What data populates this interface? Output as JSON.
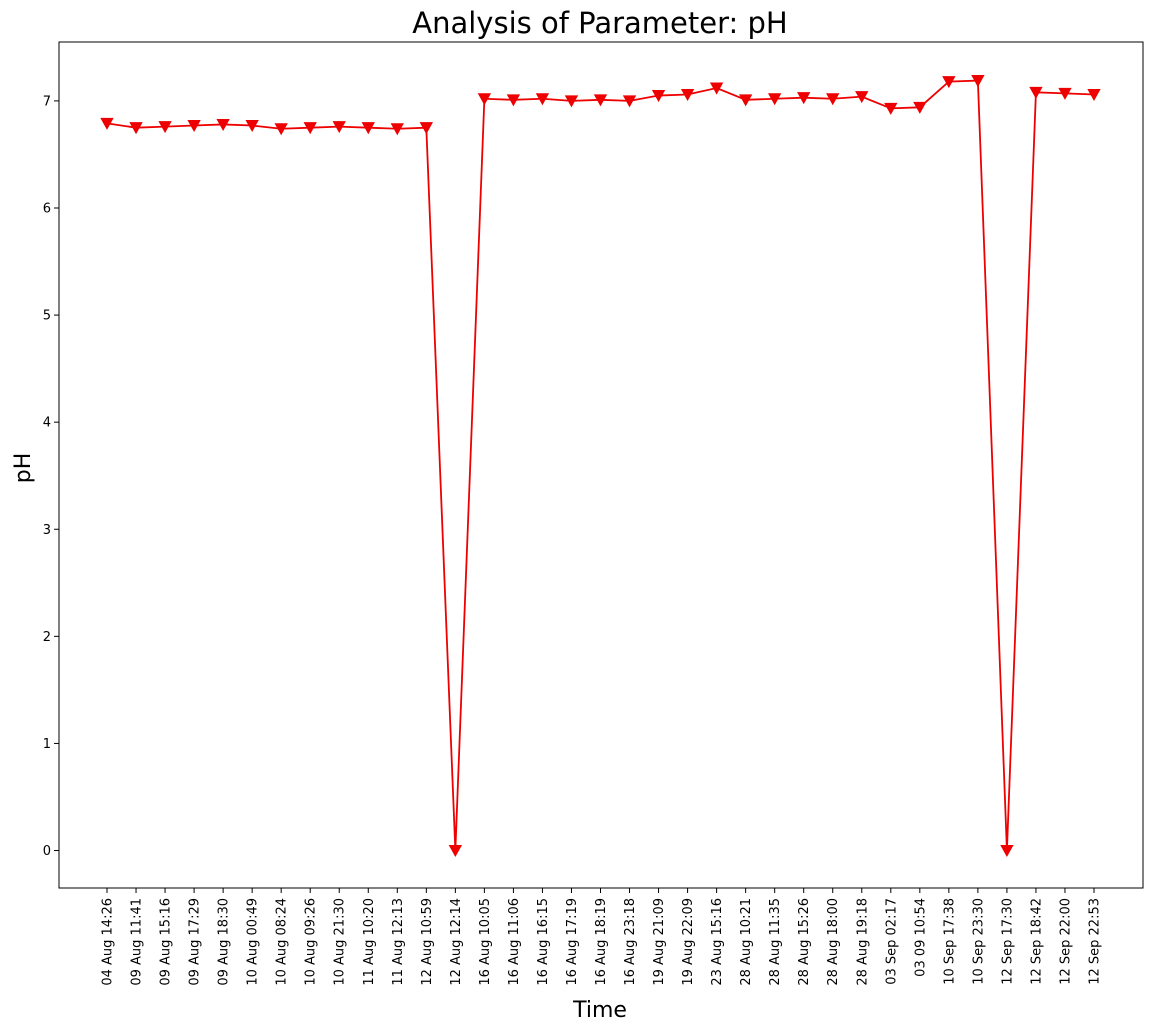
{
  "chart_data": {
    "type": "line",
    "title": "Analysis of Parameter: pH",
    "xlabel": "Time",
    "ylabel": "pH",
    "ylim": [
      -0.35,
      7.55
    ],
    "yticks": [
      0,
      1,
      2,
      3,
      4,
      5,
      6,
      7
    ],
    "grid": false,
    "legend": "none",
    "series": [
      {
        "color": "#ee0000",
        "marker": "triangle-down",
        "points": [
          {
            "x": "04 Aug 14:26",
            "y": 6.79
          },
          {
            "x": "09 Aug 11:41",
            "y": 6.75
          },
          {
            "x": "09 Aug 15:16",
            "y": 6.76
          },
          {
            "x": "09 Aug 17:29",
            "y": 6.77
          },
          {
            "x": "09 Aug 18:30",
            "y": 6.78
          },
          {
            "x": "10 Aug 00:49",
            "y": 6.77
          },
          {
            "x": "10 Aug 08:24",
            "y": 6.74
          },
          {
            "x": "10 Aug 09:26",
            "y": 6.75
          },
          {
            "x": "10 Aug 21:30",
            "y": 6.76
          },
          {
            "x": "11 Aug 10:20",
            "y": 6.75
          },
          {
            "x": "11 Aug 12:13",
            "y": 6.74
          },
          {
            "x": "12 Aug 10:59",
            "y": 6.75
          },
          {
            "x": "12 Aug 12:14",
            "y": 0.0
          },
          {
            "x": "16 Aug 10:05",
            "y": 7.02
          },
          {
            "x": "16 Aug 11:06",
            "y": 7.01
          },
          {
            "x": "16 Aug 16:15",
            "y": 7.02
          },
          {
            "x": "16 Aug 17:19",
            "y": 7.0
          },
          {
            "x": "16 Aug 18:19",
            "y": 7.01
          },
          {
            "x": "16 Aug 23:18",
            "y": 7.0
          },
          {
            "x": "19 Aug 21:09",
            "y": 7.05
          },
          {
            "x": "19 Aug 22:09",
            "y": 7.06
          },
          {
            "x": "23 Aug 15:16",
            "y": 7.12
          },
          {
            "x": "28 Aug 10:21",
            "y": 7.01
          },
          {
            "x": "28 Aug 11:35",
            "y": 7.02
          },
          {
            "x": "28 Aug 15:26",
            "y": 7.03
          },
          {
            "x": "28 Aug 18:00",
            "y": 7.02
          },
          {
            "x": "28 Aug 19:18",
            "y": 7.04
          },
          {
            "x": "03 Sep 02:17",
            "y": 6.93
          },
          {
            "x": "03 09 10:54",
            "y": 6.94
          },
          {
            "x": "10 Sep 17:38",
            "y": 7.18
          },
          {
            "x": "10 Sep 23:30",
            "y": 7.19
          },
          {
            "x": "12 Sep 17:30",
            "y": 0.0
          },
          {
            "x": "12 Sep 18:42",
            "y": 7.08
          },
          {
            "x": "12 Sep 22:00",
            "y": 7.07
          },
          {
            "x": "12 Sep 22:53",
            "y": 7.06
          }
        ]
      }
    ]
  }
}
